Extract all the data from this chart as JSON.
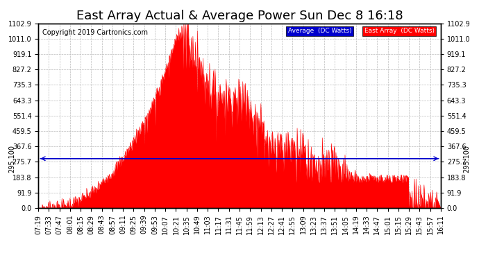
{
  "title": "East Array Actual & Average Power Sun Dec 8 16:18",
  "copyright": "Copyright 2019 Cartronics.com",
  "y_ticks": [
    0.0,
    91.9,
    183.8,
    275.7,
    367.6,
    459.5,
    551.4,
    643.3,
    735.3,
    827.2,
    919.1,
    1011.0,
    1102.9
  ],
  "ylim": [
    0.0,
    1102.9
  ],
  "reference_line_y": 295.1,
  "reference_line_label": "295.100",
  "bg_color": "#ffffff",
  "grid_color": "#bbbbbb",
  "fill_color": "#ff0000",
  "ref_line_color": "#0000cc",
  "legend_avg_bg": "#0000cc",
  "legend_east_bg": "#ff0000",
  "legend_avg_text": "Average  (DC Watts)",
  "legend_east_text": "East Array  (DC Watts)",
  "title_fontsize": 13,
  "copyright_fontsize": 7,
  "tick_fontsize": 7,
  "ref_label_fontsize": 7,
  "x_labels": [
    "07:19",
    "07:33",
    "07:47",
    "08:01",
    "08:15",
    "08:29",
    "08:43",
    "08:57",
    "09:11",
    "09:25",
    "09:39",
    "09:53",
    "10:07",
    "10:21",
    "10:35",
    "10:49",
    "11:03",
    "11:17",
    "11:31",
    "11:45",
    "11:59",
    "12:13",
    "12:27",
    "12:41",
    "12:55",
    "13:09",
    "13:23",
    "13:37",
    "13:51",
    "14:05",
    "14:19",
    "14:33",
    "14:47",
    "15:01",
    "15:15",
    "15:29",
    "15:43",
    "15:57",
    "16:11"
  ]
}
